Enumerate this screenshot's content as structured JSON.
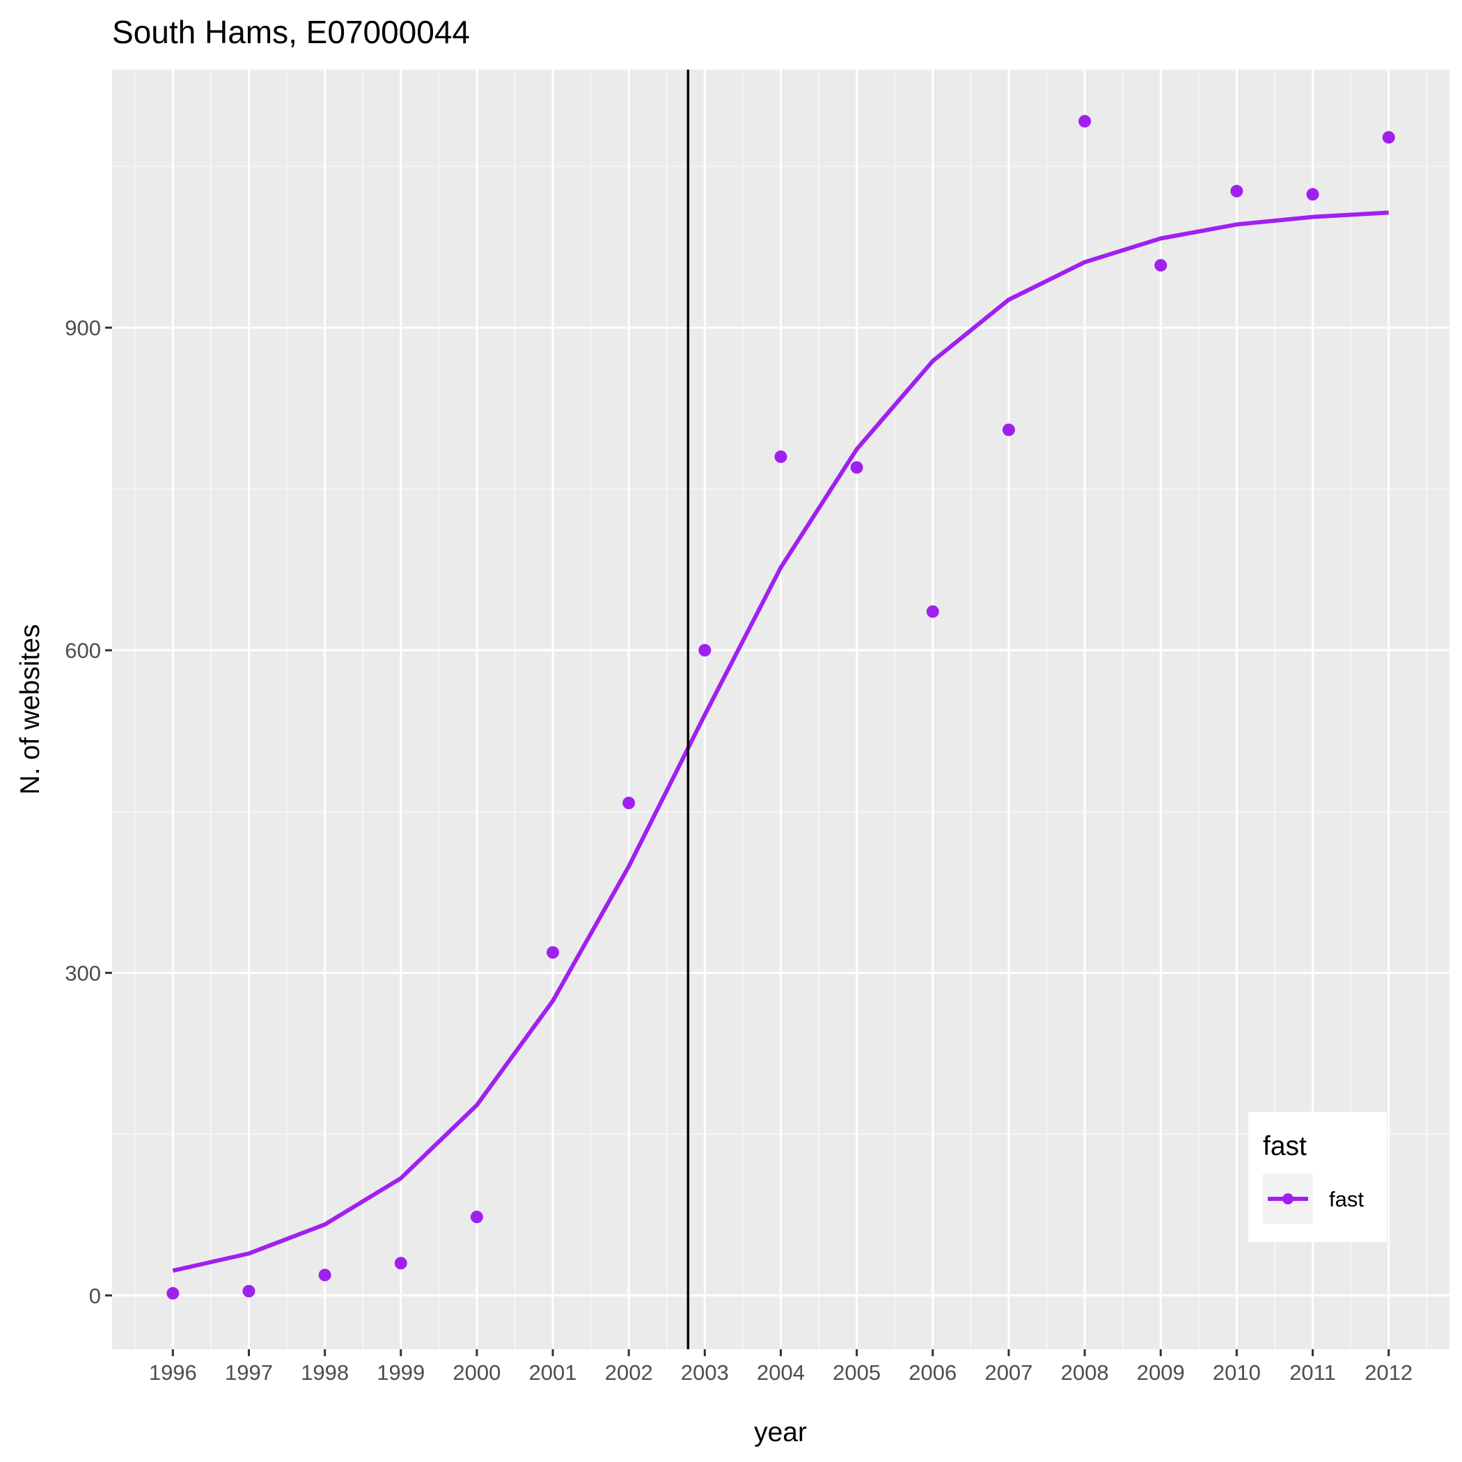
{
  "chart_data": {
    "type": "scatter",
    "title": "South Hams, E07000044",
    "xlabel": "year",
    "ylabel": "N. of websites",
    "x_ticks": [
      "1996",
      "1997",
      "1998",
      "1999",
      "2000",
      "2001",
      "2002",
      "2003",
      "2004",
      "2005",
      "2006",
      "2007",
      "2008",
      "2009",
      "2010",
      "2011",
      "2012"
    ],
    "y_ticks": [
      "0",
      "300",
      "600",
      "900"
    ],
    "xlim": [
      1995.2,
      2012.8
    ],
    "ylim": [
      -50,
      1140
    ],
    "vertical_line_x": 2002.78,
    "grid": true,
    "legend": {
      "title": "fast",
      "position": "bottom-right",
      "entries": [
        "fast"
      ]
    },
    "series": [
      {
        "name": "fast",
        "color": "#a020f0",
        "points": {
          "x": [
            1996,
            1997,
            1998,
            1999,
            2000,
            2001,
            2002,
            2003,
            2004,
            2005,
            2006,
            2007,
            2008,
            2009,
            2010,
            2011,
            2012
          ],
          "y": [
            2,
            4,
            19,
            30,
            73,
            319,
            458,
            600,
            780,
            770,
            636,
            805,
            1092,
            958,
            1027,
            1024,
            1077
          ]
        },
        "fit": {
          "x": [
            1996,
            1997,
            1998,
            1999,
            2000,
            2001,
            2002,
            2003,
            2004,
            2005,
            2006,
            2007,
            2008,
            2009,
            2010,
            2011,
            2012
          ],
          "y": [
            23,
            39,
            66,
            109,
            177,
            274,
            399,
            540,
            677,
            787,
            869,
            926,
            961,
            983,
            996,
            1003,
            1007
          ]
        }
      }
    ]
  }
}
